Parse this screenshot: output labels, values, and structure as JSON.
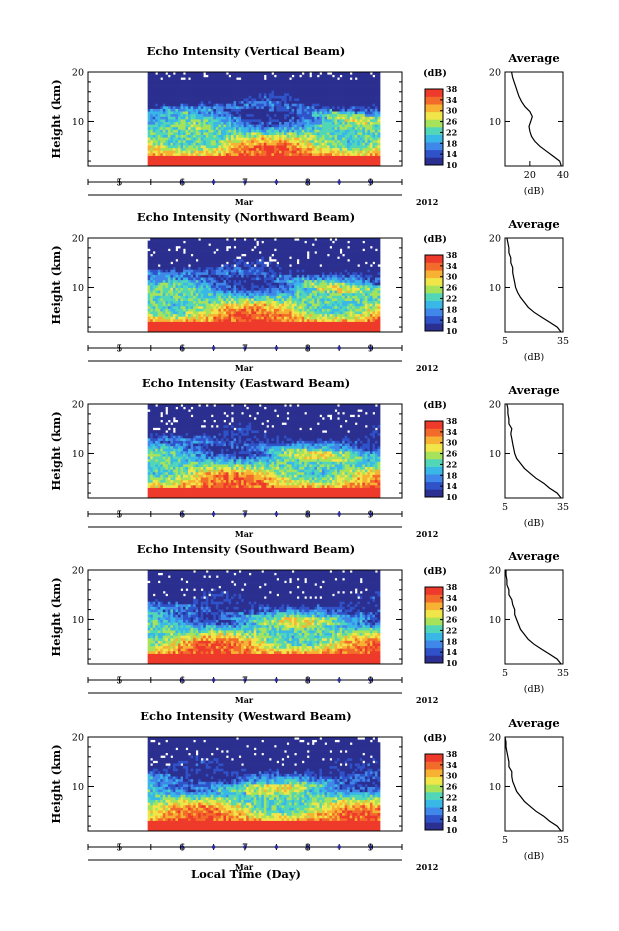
{
  "figure": {
    "xlabel": "Local Time (Day)",
    "year": "2012",
    "month": "Mar"
  },
  "colors": {
    "scale": [
      "#2b2f8f",
      "#2f52c9",
      "#3f87e8",
      "#39b8e8",
      "#52d6b8",
      "#a6e35a",
      "#f0e64a",
      "#f7b234",
      "#f26b2a",
      "#ee3a2a"
    ],
    "missing": "#ffffff",
    "axis": "#000000",
    "tick_marker": "#2a2aa6"
  },
  "chart_data": [
    {
      "type": "heatmap",
      "title": "Echo Intensity (Vertical Beam)",
      "ylabel": "Height (km)",
      "xlim": [
        4.5,
        9.5
      ],
      "ylim": [
        1,
        20
      ],
      "data_xrange": [
        5.45,
        9.15
      ],
      "yticks": [
        10,
        20
      ],
      "xticks": [
        5,
        6,
        7,
        8,
        9
      ],
      "colorbar": {
        "label": "(dB)",
        "ticks": [
          10,
          14,
          18,
          22,
          26,
          30,
          34,
          38
        ],
        "range": [
          10,
          38
        ]
      },
      "average": {
        "title": "Average",
        "xlabel": "(dB)",
        "xticks": [
          20,
          40
        ],
        "xlim": [
          5,
          40
        ],
        "ylim": [
          1,
          20
        ],
        "profile": [
          [
            39,
            1
          ],
          [
            38,
            2
          ],
          [
            34,
            3
          ],
          [
            30,
            4
          ],
          [
            26,
            5
          ],
          [
            23,
            6
          ],
          [
            21,
            7
          ],
          [
            20,
            8
          ],
          [
            19.5,
            9
          ],
          [
            20.5,
            10
          ],
          [
            21.5,
            11
          ],
          [
            20,
            12
          ],
          [
            17,
            13
          ],
          [
            15,
            14
          ],
          [
            13.5,
            15
          ],
          [
            12.5,
            16
          ],
          [
            11.5,
            17
          ],
          [
            10.5,
            18
          ],
          [
            9.5,
            19
          ],
          [
            9,
            20
          ]
        ]
      }
    },
    {
      "type": "heatmap",
      "title": "Echo Intensity (Northward Beam)",
      "ylabel": "Height (km)",
      "xlim": [
        4.5,
        9.5
      ],
      "ylim": [
        1,
        20
      ],
      "data_xrange": [
        5.45,
        9.15
      ],
      "yticks": [
        10,
        20
      ],
      "xticks": [
        5,
        6,
        7,
        8,
        9
      ],
      "colorbar": {
        "label": "(dB)",
        "ticks": [
          10,
          14,
          18,
          22,
          26,
          30,
          34,
          38
        ],
        "range": [
          10,
          38
        ]
      },
      "average": {
        "title": "Average",
        "xlabel": "(dB)",
        "xticks": [
          5,
          35
        ],
        "xlim": [
          5,
          35
        ],
        "ylim": [
          1,
          20
        ],
        "profile": [
          [
            34,
            1
          ],
          [
            32,
            2
          ],
          [
            28,
            3
          ],
          [
            24,
            4
          ],
          [
            20,
            5
          ],
          [
            17,
            6
          ],
          [
            15,
            7
          ],
          [
            13,
            8
          ],
          [
            11.5,
            9
          ],
          [
            10.5,
            10
          ],
          [
            10,
            11
          ],
          [
            9.5,
            12
          ],
          [
            9,
            13
          ],
          [
            9,
            14
          ],
          [
            8,
            15
          ],
          [
            8,
            16
          ],
          [
            7,
            17
          ],
          [
            7,
            18
          ],
          [
            6.5,
            19
          ],
          [
            6,
            20
          ]
        ]
      }
    },
    {
      "type": "heatmap",
      "title": "Echo Intensity (Eastward Beam)",
      "ylabel": "Height (km)",
      "xlim": [
        4.5,
        9.5
      ],
      "ylim": [
        1,
        20
      ],
      "data_xrange": [
        5.45,
        9.15
      ],
      "yticks": [
        10,
        20
      ],
      "xticks": [
        5,
        6,
        7,
        8,
        9
      ],
      "colorbar": {
        "label": "(dB)",
        "ticks": [
          10,
          14,
          18,
          22,
          26,
          30,
          34,
          38
        ],
        "range": [
          10,
          38
        ]
      },
      "average": {
        "title": "Average",
        "xlabel": "(dB)",
        "xticks": [
          5,
          35
        ],
        "xlim": [
          5,
          35
        ],
        "ylim": [
          1,
          20
        ],
        "profile": [
          [
            34,
            1
          ],
          [
            32,
            2
          ],
          [
            28,
            3
          ],
          [
            25,
            4
          ],
          [
            21,
            5
          ],
          [
            18,
            6
          ],
          [
            15,
            7
          ],
          [
            13,
            8
          ],
          [
            11,
            9
          ],
          [
            10,
            10
          ],
          [
            9.5,
            11
          ],
          [
            9,
            12
          ],
          [
            8.5,
            13
          ],
          [
            8,
            14
          ],
          [
            8.5,
            15
          ],
          [
            7,
            16
          ],
          [
            7,
            17
          ],
          [
            6.5,
            18
          ],
          [
            6.5,
            19
          ],
          [
            6,
            20
          ]
        ]
      }
    },
    {
      "type": "heatmap",
      "title": "Echo Intensity (Southward Beam)",
      "ylabel": "Height (km)",
      "xlim": [
        4.5,
        9.5
      ],
      "ylim": [
        1,
        20
      ],
      "data_xrange": [
        5.45,
        9.15
      ],
      "yticks": [
        10,
        20
      ],
      "xticks": [
        5,
        6,
        7,
        8,
        9
      ],
      "colorbar": {
        "label": "(dB)",
        "ticks": [
          10,
          14,
          18,
          22,
          26,
          30,
          34,
          38
        ],
        "range": [
          10,
          38
        ]
      },
      "average": {
        "title": "Average",
        "xlabel": "(dB)",
        "xticks": [
          5,
          35
        ],
        "xlim": [
          5,
          35
        ],
        "ylim": [
          1,
          20
        ],
        "profile": [
          [
            34,
            1
          ],
          [
            32,
            2
          ],
          [
            28,
            3
          ],
          [
            24,
            4
          ],
          [
            20,
            5
          ],
          [
            17,
            6
          ],
          [
            15,
            7
          ],
          [
            13,
            8
          ],
          [
            12,
            9
          ],
          [
            11,
            10
          ],
          [
            10,
            11
          ],
          [
            10,
            12
          ],
          [
            9,
            13
          ],
          [
            8.5,
            14
          ],
          [
            7,
            15
          ],
          [
            7,
            16
          ],
          [
            6,
            17
          ],
          [
            6,
            18
          ],
          [
            5.5,
            19
          ],
          [
            5.5,
            20
          ]
        ]
      }
    },
    {
      "type": "heatmap",
      "title": "Echo Intensity (Westward Beam)",
      "ylabel": "Height (km)",
      "xlim": [
        4.5,
        9.5
      ],
      "ylim": [
        1,
        20
      ],
      "data_xrange": [
        5.45,
        9.15
      ],
      "yticks": [
        10,
        20
      ],
      "xticks": [
        5,
        6,
        7,
        8,
        9
      ],
      "colorbar": {
        "label": "(dB)",
        "ticks": [
          10,
          14,
          18,
          22,
          26,
          30,
          34,
          38
        ],
        "range": [
          10,
          38
        ]
      },
      "average": {
        "title": "Average",
        "xlabel": "(dB)",
        "xticks": [
          5,
          35
        ],
        "xlim": [
          5,
          35
        ],
        "ylim": [
          1,
          20
        ],
        "profile": [
          [
            34,
            1
          ],
          [
            32,
            2
          ],
          [
            28,
            3
          ],
          [
            25,
            4
          ],
          [
            21,
            5
          ],
          [
            18,
            6
          ],
          [
            15,
            7
          ],
          [
            13,
            8
          ],
          [
            11,
            9
          ],
          [
            10,
            10
          ],
          [
            9,
            11
          ],
          [
            8.5,
            12
          ],
          [
            8.5,
            13
          ],
          [
            7,
            14
          ],
          [
            7,
            15
          ],
          [
            6.5,
            16
          ],
          [
            6,
            17
          ],
          [
            5.5,
            18
          ],
          [
            5.5,
            19
          ],
          [
            5,
            20
          ]
        ]
      }
    }
  ]
}
